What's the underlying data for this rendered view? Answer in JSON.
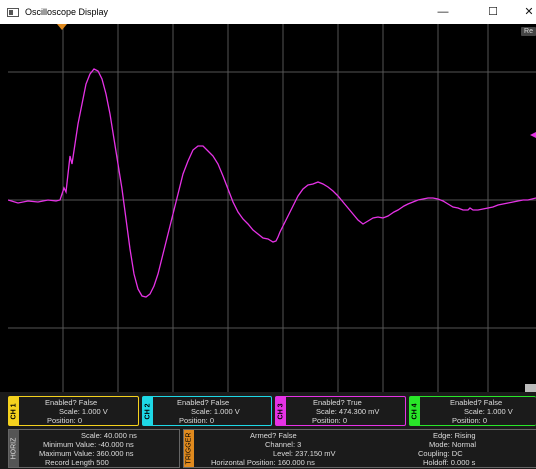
{
  "window": {
    "title": "Oscilloscope Display",
    "minimize": "—",
    "maximize": "☐",
    "close": "✕"
  },
  "screen": {
    "reset_label": "Re"
  },
  "waveform": {
    "color": "#e632e6",
    "grid_color": "#555555"
  },
  "channels": [
    {
      "tab": "CH 1",
      "color": "#f5d21e",
      "enabled": "Enabled? False",
      "scale": "Scale: 1.000 V",
      "position": "Position: 0"
    },
    {
      "tab": "CH 2",
      "color": "#1ed8e6",
      "enabled": "Enabled? False",
      "scale": "Scale: 1.000 V",
      "position": "Position: 0"
    },
    {
      "tab": "CH 3",
      "color": "#e632e6",
      "enabled": "Enabled? True",
      "scale": "Scale: 474.300 mV",
      "position": "Position: 0"
    },
    {
      "tab": "CH 4",
      "color": "#29e629",
      "enabled": "Enabled? False",
      "scale": "Scale: 1.000 V",
      "position": "Position: 0"
    }
  ],
  "horiz": {
    "tab": "HORIZ",
    "scale": "Scale: 40.000 ns",
    "min": "Minimum Value: -40.000 ns",
    "max": "Maximum Value: 360.000 ns",
    "record": "Record Length 500"
  },
  "trigger": {
    "tab": "TRIGGER",
    "tab_color": "#e08a1e",
    "armed": "Armed? False",
    "channel": "Channel: 3",
    "level": "Level: 237.150 mV",
    "hpos": "Horizontal Position: 160.000 ns",
    "edge": "Edge: Rising",
    "mode": "Mode: Normal",
    "coupling": "Coupling: DC",
    "holdoff": "Holdoff: 0.000 s"
  }
}
